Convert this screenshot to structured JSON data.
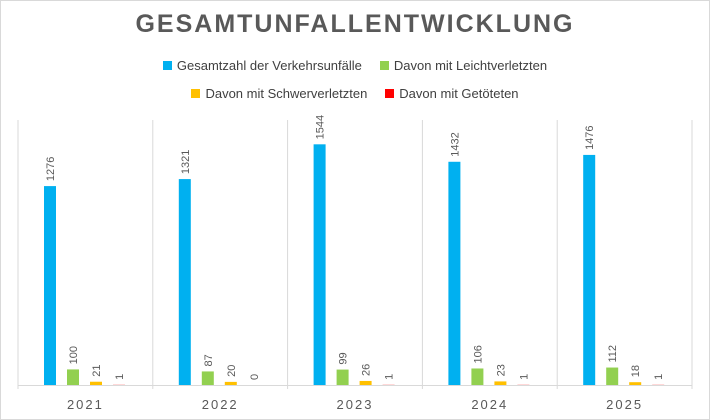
{
  "chart_data": {
    "type": "bar",
    "title": "GESAMTUNFALLENTWICKLUNG",
    "categories": [
      "2021",
      "2022",
      "2023",
      "2024",
      "2025"
    ],
    "series": [
      {
        "name": "Gesamtzahl der Verkehrsunfälle",
        "color": "#00b0f0",
        "values": [
          1276,
          1321,
          1544,
          1432,
          1476
        ]
      },
      {
        "name": "Davon mit Leichtverletzten",
        "color": "#92d050",
        "values": [
          100,
          87,
          99,
          106,
          112
        ]
      },
      {
        "name": "Davon mit Schwerverletzten",
        "color": "#ffc000",
        "values": [
          21,
          20,
          26,
          23,
          18
        ]
      },
      {
        "name": "Davon mit Getöteten",
        "color": "#ff0000",
        "values": [
          1,
          0,
          1,
          1,
          1
        ]
      }
    ],
    "ylim": [
      0,
      1700
    ],
    "legend_position": "top",
    "grid": false,
    "data_labels": true
  }
}
